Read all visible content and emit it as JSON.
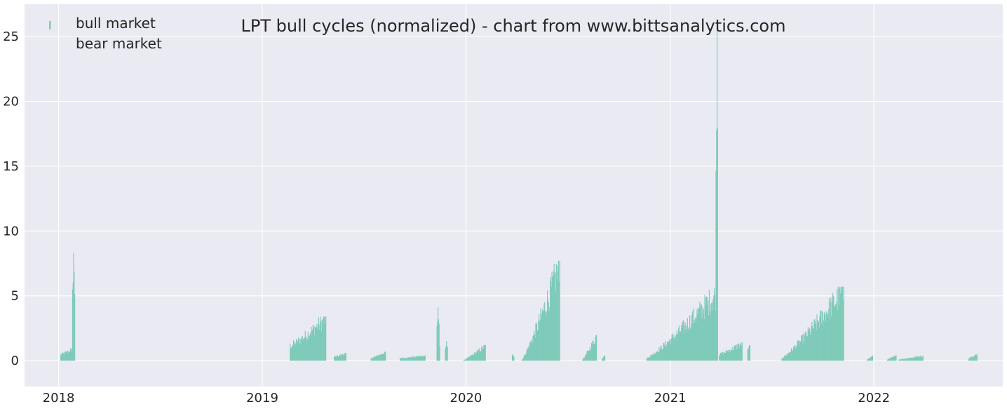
{
  "chart_data": {
    "type": "bar",
    "title": "LPT bull cycles (normalized)  - chart from www.bittsanalytics.com",
    "xlabel": "",
    "ylabel": "",
    "xlim": [
      "2017-11-01",
      "2022-08-20"
    ],
    "ylim": [
      -2,
      27.5
    ],
    "grid": true,
    "legend_position": "top-left",
    "colors": {
      "bull": "#7fcab9",
      "background": "#eaeaf2",
      "grid": "#ffffff",
      "text": "#262626"
    },
    "x_ticks": [
      {
        "date": "2018-01-01",
        "label": "2018"
      },
      {
        "date": "2019-01-01",
        "label": "2019"
      },
      {
        "date": "2020-01-01",
        "label": "2020"
      },
      {
        "date": "2021-01-01",
        "label": "2021"
      },
      {
        "date": "2022-01-01",
        "label": "2022"
      }
    ],
    "y_ticks": [
      0,
      5,
      10,
      15,
      20,
      25
    ],
    "series": [
      {
        "name": "bull market",
        "color": "#7fcab9",
        "segments": [
          {
            "start": "2018-01-05",
            "end": "2018-01-30",
            "start_value": 0.5,
            "end_value": 1.0,
            "peak_date": "2018-01-28",
            "peak_value": 8.3
          },
          {
            "start": "2019-02-20",
            "end": "2019-04-25",
            "start_value": 1.2,
            "end_value": 3.4,
            "peak_date": "2019-04-25",
            "peak_value": 3.4
          },
          {
            "start": "2019-05-10",
            "end": "2019-05-31",
            "start_value": 0.3,
            "end_value": 0.6,
            "peak_date": "2019-05-31",
            "peak_value": 0.6
          },
          {
            "start": "2019-07-15",
            "end": "2019-08-10",
            "start_value": 0.2,
            "end_value": 0.7,
            "peak_date": "2019-08-10",
            "peak_value": 0.7
          },
          {
            "start": "2019-09-05",
            "end": "2019-10-20",
            "start_value": 0.2,
            "end_value": 0.4,
            "peak_date": "2019-10-20",
            "peak_value": 0.4
          },
          {
            "start": "2019-11-10",
            "end": "2019-11-15",
            "start_value": 0.5,
            "end_value": 1.0,
            "peak_date": "2019-11-12",
            "peak_value": 4.1
          },
          {
            "start": "2019-11-25",
            "end": "2019-11-29",
            "start_value": 0.5,
            "end_value": 0.8,
            "peak_date": "2019-11-27",
            "peak_value": 1.5
          },
          {
            "start": "2019-12-28",
            "end": "2020-02-05",
            "start_value": 0.05,
            "end_value": 1.2,
            "peak_date": "2020-02-05",
            "peak_value": 1.2
          },
          {
            "start": "2020-03-24",
            "end": "2020-03-27",
            "start_value": 0.4,
            "end_value": 0.4,
            "peak_date": "2020-03-25",
            "peak_value": 0.5
          },
          {
            "start": "2020-04-10",
            "end": "2020-06-17",
            "start_value": 0.05,
            "end_value": 7.7,
            "peak_date": "2020-06-17",
            "peak_value": 7.7
          },
          {
            "start": "2020-07-28",
            "end": "2020-08-22",
            "start_value": 0.1,
            "end_value": 2.0,
            "peak_date": "2020-08-22",
            "peak_value": 2.0
          },
          {
            "start": "2020-09-01",
            "end": "2020-09-06",
            "start_value": 0.2,
            "end_value": 0.4,
            "peak_date": "2020-09-05",
            "peak_value": 0.4
          },
          {
            "start": "2020-11-20",
            "end": "2021-03-27",
            "start_value": 0.2,
            "end_value": 5.5,
            "peak_date": "2021-03-26",
            "peak_value": 26.0
          },
          {
            "start": "2021-03-30",
            "end": "2021-05-10",
            "start_value": 0.5,
            "end_value": 1.4,
            "peak_date": "2021-05-10",
            "peak_value": 1.4
          },
          {
            "start": "2021-05-20",
            "end": "2021-05-24",
            "start_value": 0.8,
            "end_value": 1.2,
            "peak_date": "2021-05-23",
            "peak_value": 1.2
          },
          {
            "start": "2021-07-20",
            "end": "2021-11-08",
            "start_value": 0.2,
            "end_value": 5.7,
            "peak_date": "2021-11-08",
            "peak_value": 5.7
          },
          {
            "start": "2021-12-20",
            "end": "2021-12-30",
            "start_value": 0.1,
            "end_value": 0.4,
            "peak_date": "2021-12-30",
            "peak_value": 0.4
          },
          {
            "start": "2022-01-25",
            "end": "2022-02-10",
            "start_value": 0.1,
            "end_value": 0.4,
            "peak_date": "2022-02-10",
            "peak_value": 0.4
          },
          {
            "start": "2022-02-15",
            "end": "2022-03-30",
            "start_value": 0.1,
            "end_value": 0.4,
            "peak_date": "2022-03-30",
            "peak_value": 0.4
          },
          {
            "start": "2022-06-20",
            "end": "2022-07-05",
            "start_value": 0.2,
            "end_value": 0.5,
            "peak_date": "2022-07-05",
            "peak_value": 0.5
          }
        ]
      },
      {
        "name": "bear market",
        "color": "#eaeaf2",
        "segments": []
      }
    ]
  }
}
